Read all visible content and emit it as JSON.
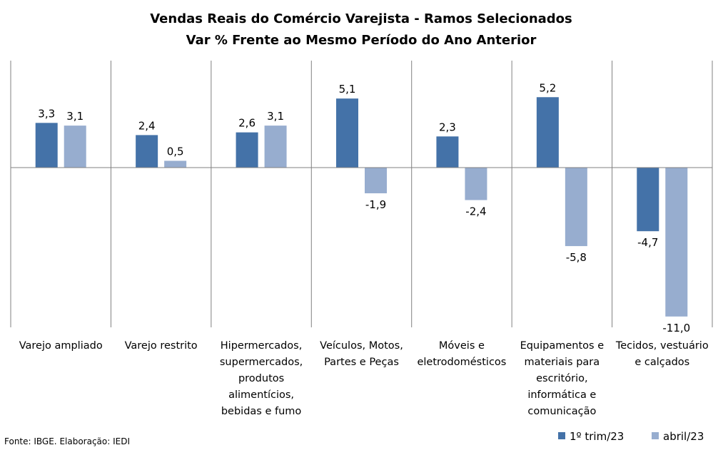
{
  "chart_data": {
    "type": "bar",
    "title": "Vendas Reais do Comércio Varejista - Ramos Selecionados",
    "subtitle": "Var % Frente ao Mesmo Período do Ano Anterior",
    "categories": [
      "Varejo ampliado",
      "Varejo restrito",
      "Hipermercados, supermercados, produtos alimentícios, bebidas e fumo",
      "Veículos, Motos, Partes e Peças",
      "Móveis e eletrodomésticos",
      "Equipamentos e materiais para escritório, informática e comunicação",
      "Tecidos, vestuário e calçados"
    ],
    "category_lines": [
      [
        "Varejo ampliado"
      ],
      [
        "Varejo restrito"
      ],
      [
        "Hipermercados,",
        "supermercados,",
        "produtos",
        "alimentícios,",
        "bebidas e fumo"
      ],
      [
        "Veículos, Motos,",
        "Partes e Peças"
      ],
      [
        "Móveis e",
        "eletrodomésticos"
      ],
      [
        "Equipamentos e",
        "materiais para",
        "escritório,",
        "informática e",
        "comunicação"
      ],
      [
        "Tecidos, vestuário",
        "e calçados"
      ]
    ],
    "series": [
      {
        "name": "1º trim/23",
        "color": "#4472a8",
        "values": [
          3.3,
          2.4,
          2.6,
          5.1,
          2.3,
          5.2,
          -4.7
        ],
        "labels": [
          "3,3",
          "2,4",
          "2,6",
          "5,1",
          "2,3",
          "5,2",
          "-4,7"
        ]
      },
      {
        "name": "abril/23",
        "color": "#97adcf",
        "values": [
          3.1,
          0.5,
          3.1,
          -1.9,
          -2.4,
          -5.8,
          -11.0
        ],
        "labels": [
          "3,1",
          "0,5",
          "3,1",
          "-1,9",
          "-2,4",
          "-5,8",
          "-11,0"
        ]
      }
    ],
    "ylim": [
      -11.8,
      7.9
    ],
    "grid": false,
    "legend": "bottom-right"
  },
  "source_note": "Fonte: IBGE. Elaboração: IEDI"
}
